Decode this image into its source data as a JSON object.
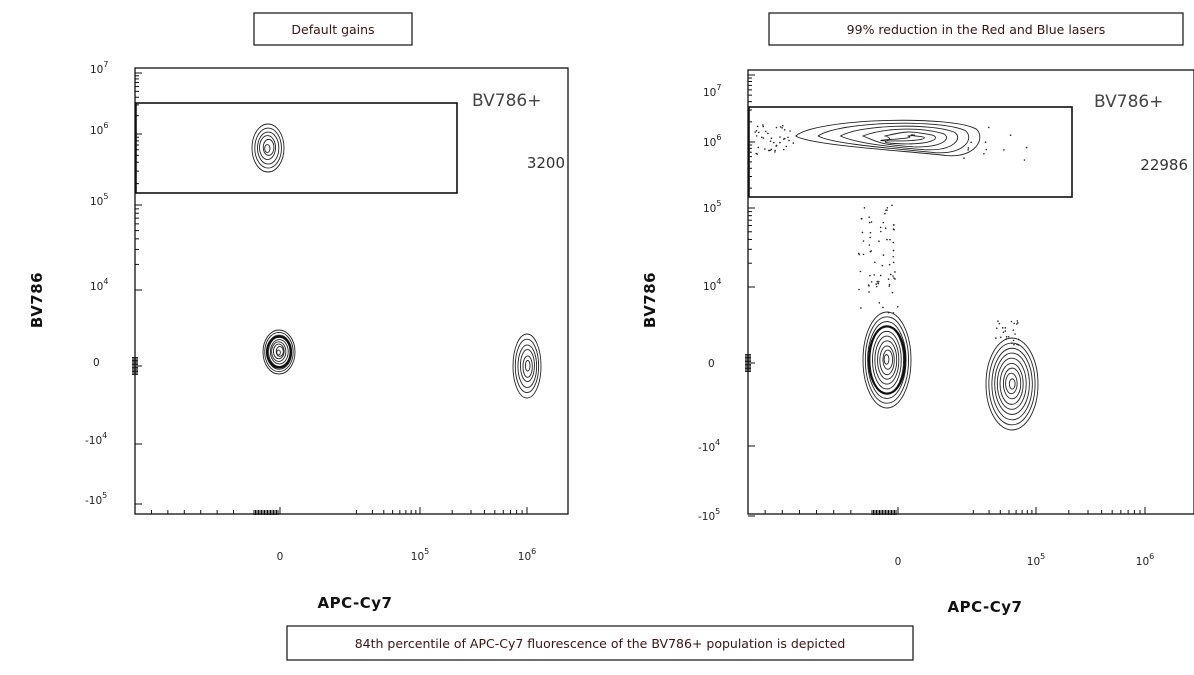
{
  "caption": "84th percentile of APC-Cy7 fluorescence of the BV786+ population is depicted",
  "chart_data": [
    {
      "type": "contour",
      "title": "Default gains",
      "xlabel": "APC-Cy7",
      "ylabel": "BV786",
      "y_ticks": [
        {
          "base": "10",
          "exp": "7",
          "value": 10000000
        },
        {
          "base": "10",
          "exp": "6",
          "value": 1000000
        },
        {
          "base": "10",
          "exp": "5",
          "value": 100000
        },
        {
          "base": "10",
          "exp": "4",
          "value": 10000
        },
        {
          "base": "0",
          "exp": "",
          "value": 0
        },
        {
          "base": "-10",
          "exp": "4",
          "value": -10000
        },
        {
          "base": "-10",
          "exp": "5",
          "value": -100000
        }
      ],
      "x_ticks": [
        {
          "base": "0",
          "exp": "",
          "value": 0
        },
        {
          "base": "10",
          "exp": "5",
          "value": 100000
        },
        {
          "base": "10",
          "exp": "6",
          "value": 1000000
        }
      ],
      "gate": {
        "name": "BV786+",
        "count": "3200"
      },
      "populations": [
        {
          "x": -3000,
          "y": 500000
        },
        {
          "x": -3000,
          "y": 0
        },
        {
          "x": 1100000,
          "y": 0
        }
      ]
    },
    {
      "type": "contour",
      "title": "99% reduction in the Red and Blue lasers",
      "xlabel": "APC-Cy7",
      "ylabel": "BV786",
      "y_ticks": [
        {
          "base": "10",
          "exp": "7",
          "value": 10000000
        },
        {
          "base": "10",
          "exp": "6",
          "value": 1000000
        },
        {
          "base": "10",
          "exp": "5",
          "value": 100000
        },
        {
          "base": "10",
          "exp": "4",
          "value": 10000
        },
        {
          "base": "0",
          "exp": "",
          "value": 0
        },
        {
          "base": "-10",
          "exp": "4",
          "value": -10000
        },
        {
          "base": "-10",
          "exp": "5",
          "value": -100000
        }
      ],
      "x_ticks": [
        {
          "base": "0",
          "exp": "",
          "value": 0
        },
        {
          "base": "10",
          "exp": "5",
          "value": 100000
        },
        {
          "base": "10",
          "exp": "6",
          "value": 1000000
        }
      ],
      "gate": {
        "name": "BV786+",
        "count": "22986"
      },
      "populations": [
        {
          "x": 8000,
          "y": 500000
        },
        {
          "x": -2000,
          "y": -1000
        },
        {
          "x": 70000,
          "y": -2000
        }
      ]
    }
  ]
}
